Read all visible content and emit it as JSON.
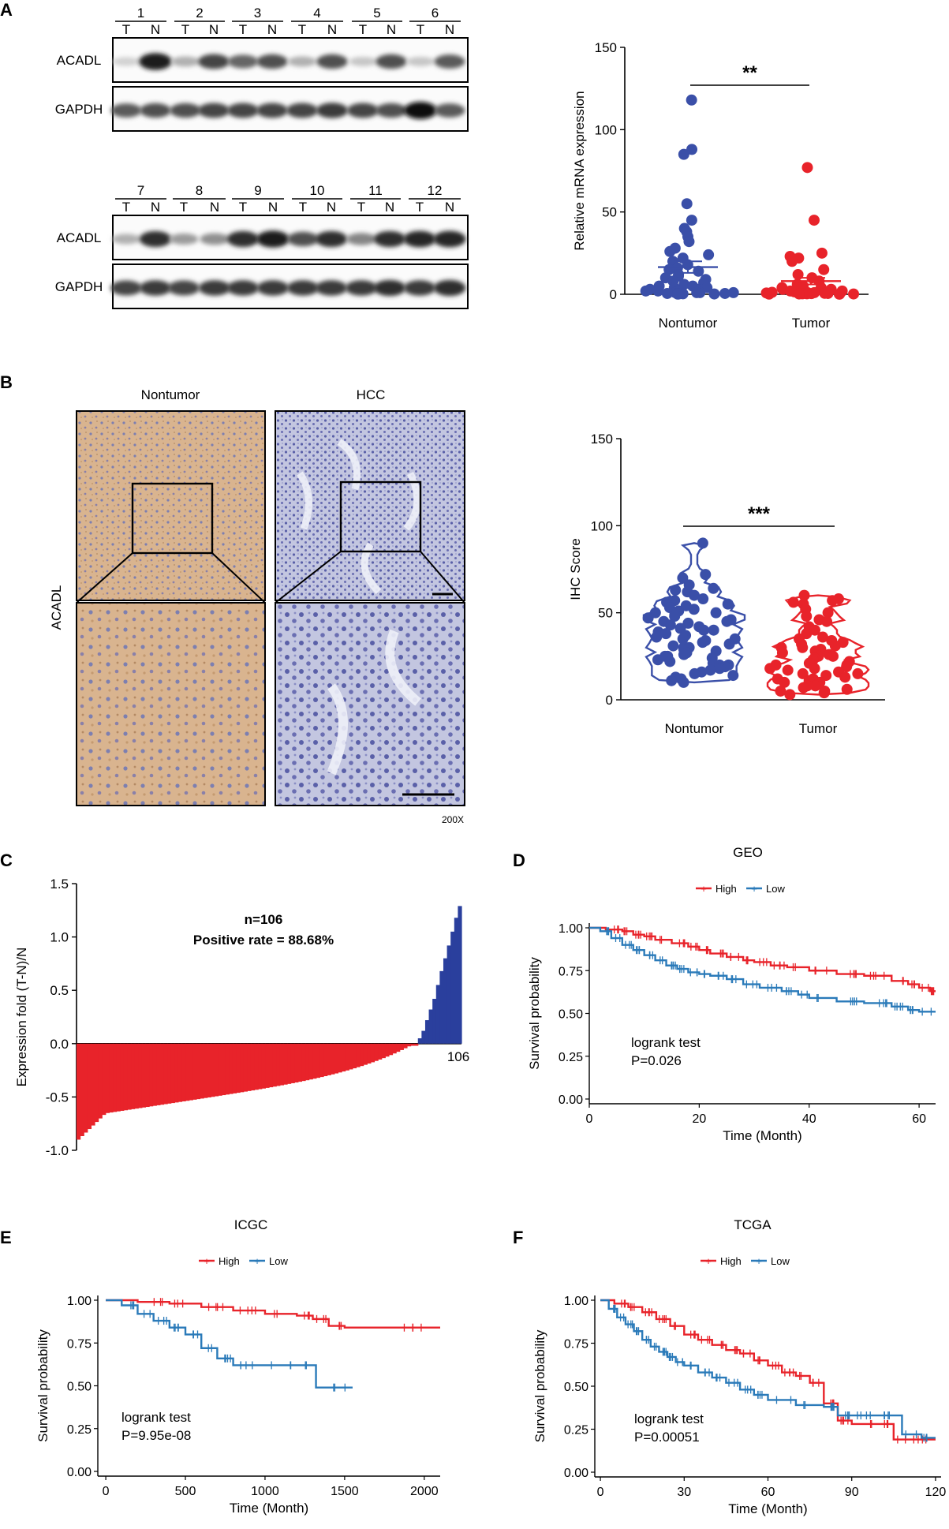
{
  "panels": {
    "A": {
      "letter": "A",
      "blot_top": {
        "lanes": [
          "1",
          "2",
          "3",
          "4",
          "5",
          "6"
        ],
        "rows": [
          "ACADL",
          "GAPDH"
        ],
        "acadl_intensity": [
          0.1,
          0.95,
          0.25,
          0.75,
          0.6,
          0.7,
          0.25,
          0.7,
          0.15,
          0.7,
          0.15,
          0.65
        ],
        "gapdh_intensity": [
          0.65,
          0.7,
          0.7,
          0.75,
          0.75,
          0.75,
          0.75,
          0.8,
          0.75,
          0.7,
          1.0,
          0.65
        ]
      },
      "blot_bottom": {
        "lanes": [
          "7",
          "8",
          "9",
          "10",
          "11",
          "12"
        ],
        "rows": [
          "ACADL",
          "GAPDH"
        ],
        "acadl_intensity": [
          0.25,
          0.85,
          0.35,
          0.4,
          0.85,
          0.95,
          0.7,
          0.85,
          0.45,
          0.85,
          0.9,
          0.9
        ],
        "gapdh_intensity": [
          0.75,
          0.8,
          0.75,
          0.8,
          0.8,
          0.8,
          0.8,
          0.8,
          0.8,
          0.85,
          0.8,
          0.85
        ]
      },
      "lane_t": "T",
      "lane_n": "N"
    },
    "B": {
      "letter": "B",
      "col_nontumor": "Nontumor",
      "col_hcc": "HCC",
      "row_label": "ACADL",
      "magnification": "200X",
      "colors": {
        "nontumor_tissue": "#d9b48f",
        "hcc_tissue": "#c3c6e0"
      }
    },
    "C": {
      "letter": "C"
    },
    "D": {
      "letter": "D"
    },
    "E": {
      "letter": "E"
    },
    "F": {
      "letter": "F"
    }
  },
  "chart_data": [
    {
      "id": "mrna",
      "type": "scatter",
      "ylabel": "Relative mRNA expression",
      "ylim": [
        0,
        150
      ],
      "yticks": [
        0,
        50,
        100,
        150
      ],
      "categories": [
        "Nontumor",
        "Tumor"
      ],
      "significance": "**",
      "colors": [
        "#3a4fa8",
        "#e8232a"
      ],
      "series": [
        {
          "name": "Nontumor",
          "mean": 16.5,
          "sem": 3.5,
          "values": [
            118,
            88,
            85,
            55,
            45,
            40,
            38,
            35,
            32,
            28,
            26,
            24,
            22,
            20,
            18,
            16,
            15,
            14,
            12,
            11,
            10,
            9,
            8,
            7,
            6,
            5,
            5,
            4,
            4,
            3,
            3,
            2,
            2,
            2,
            1,
            1,
            1,
            1,
            0.5,
            0.5,
            0.5,
            0.3,
            0.3,
            0.2,
            0.2,
            0.1
          ]
        },
        {
          "name": "Tumor",
          "mean": 8,
          "sem": 2,
          "values": [
            77,
            45,
            25,
            23,
            22,
            20,
            15,
            12,
            10,
            8,
            6,
            5,
            4,
            4,
            3,
            3,
            2,
            2,
            2,
            1.5,
            1.2,
            1,
            1,
            0.8,
            0.6,
            0.5,
            0.4,
            0.3,
            0.3,
            0.2,
            0.2,
            0.1,
            0.1,
            0.1
          ]
        }
      ]
    },
    {
      "id": "ihc",
      "type": "scatter",
      "ylabel": "IHC Score",
      "ylim": [
        0,
        150
      ],
      "yticks": [
        0,
        50,
        100,
        150
      ],
      "categories": [
        "Nontumor",
        "Tumor"
      ],
      "significance": "***",
      "colors": [
        "#3a4fa8",
        "#e8232a"
      ],
      "series": [
        {
          "name": "Nontumor",
          "values": [
            90,
            72,
            70,
            66,
            64,
            63,
            62,
            60,
            58,
            57,
            56,
            55,
            54,
            53,
            52,
            51,
            50,
            50,
            49,
            48,
            47,
            46,
            45,
            45,
            44,
            43,
            42,
            41,
            40,
            40,
            39,
            38,
            37,
            36,
            35,
            35,
            34,
            33,
            32,
            31,
            30,
            30,
            29,
            28,
            27,
            26,
            25,
            25,
            24,
            23,
            22,
            21,
            20,
            20,
            19,
            18,
            17,
            16,
            15,
            14,
            13,
            12,
            11,
            10
          ]
        },
        {
          "name": "Tumor",
          "values": [
            60,
            58,
            57,
            56,
            55,
            52,
            50,
            48,
            46,
            45,
            42,
            40,
            38,
            36,
            35,
            34,
            33,
            32,
            31,
            30,
            30,
            29,
            28,
            27,
            26,
            25,
            25,
            24,
            23,
            22,
            21,
            20,
            20,
            19,
            18,
            18,
            17,
            16,
            15,
            15,
            14,
            13,
            12,
            12,
            11,
            10,
            10,
            9,
            8,
            8,
            7,
            6,
            5,
            5,
            4,
            3
          ]
        }
      ]
    },
    {
      "id": "fold",
      "type": "bar",
      "ylabel": "Expression fold  (T-N)/N",
      "ylim": [
        -1.0,
        1.5
      ],
      "yticks": [
        -1.0,
        -0.5,
        0.0,
        0.5,
        1.0,
        1.5
      ],
      "ytick_labels": [
        "-1.0",
        "-0.5",
        "0.0",
        "0.5",
        "1.0",
        "1.5"
      ],
      "n_label": "n=106",
      "rate_label": "Positive rate = 88.68%",
      "end_label": "106",
      "count": 106,
      "neg_count": 94,
      "neg_range": [
        -0.9,
        -0.02
      ],
      "pos_values": [
        0.05,
        0.12,
        0.22,
        0.32,
        0.42,
        0.55,
        0.68,
        0.8,
        0.92,
        1.05,
        1.18,
        1.29
      ],
      "colors": {
        "neg": "#e8232a",
        "pos": "#2a3f9d"
      }
    },
    {
      "id": "geo",
      "type": "line",
      "title": "GEO",
      "xlabel": "Time (Month)",
      "ylabel": "Survival probability",
      "xlim": [
        0,
        63
      ],
      "xticks": [
        0,
        20,
        40,
        60
      ],
      "ylim": [
        0,
        1
      ],
      "yticks": [
        0,
        0.25,
        0.5,
        0.75,
        1.0
      ],
      "ytick_labels": [
        "0.00",
        "0.25",
        "0.50",
        "0.75",
        "1.00"
      ],
      "legend": [
        "High",
        "Low"
      ],
      "test_label": "logrank test",
      "pvalue": "P=0.026",
      "series": [
        {
          "name": "High",
          "color": "#e8232a",
          "x": [
            0,
            3,
            6,
            8,
            10,
            12,
            15,
            18,
            20,
            22,
            25,
            28,
            30,
            33,
            36,
            40,
            45,
            50,
            55,
            58,
            60,
            62,
            63
          ],
          "y": [
            1,
            0.99,
            0.98,
            0.96,
            0.95,
            0.93,
            0.91,
            0.89,
            0.87,
            0.85,
            0.83,
            0.81,
            0.8,
            0.78,
            0.77,
            0.75,
            0.73,
            0.72,
            0.69,
            0.67,
            0.65,
            0.63,
            0.63
          ]
        },
        {
          "name": "Low",
          "color": "#2a7ab9",
          "x": [
            0,
            2,
            4,
            6,
            8,
            10,
            12,
            14,
            16,
            18,
            20,
            22,
            25,
            28,
            31,
            35,
            38,
            40,
            45,
            50,
            55,
            58,
            60,
            63
          ],
          "y": [
            1,
            0.98,
            0.94,
            0.9,
            0.87,
            0.84,
            0.81,
            0.78,
            0.76,
            0.74,
            0.73,
            0.72,
            0.7,
            0.67,
            0.65,
            0.63,
            0.61,
            0.59,
            0.57,
            0.56,
            0.54,
            0.52,
            0.51,
            0.51
          ]
        }
      ]
    },
    {
      "id": "icgc",
      "type": "line",
      "title": "ICGC",
      "xlabel": "Time (Month)",
      "ylabel": "Survival probability",
      "xlim": [
        -50,
        2100
      ],
      "xticks": [
        0,
        500,
        1000,
        1500,
        2000
      ],
      "ylim": [
        0,
        1
      ],
      "yticks": [
        0,
        0.25,
        0.5,
        0.75,
        1.0
      ],
      "ytick_labels": [
        "0.00",
        "0.25",
        "0.50",
        "0.75",
        "1.00"
      ],
      "legend": [
        "High",
        "Low"
      ],
      "test_label": "logrank test",
      "pvalue": "P=9.95e-08",
      "series": [
        {
          "name": "High",
          "color": "#e8232a",
          "x": [
            0,
            200,
            400,
            600,
            800,
            1000,
            1200,
            1300,
            1400,
            1500,
            2100
          ],
          "y": [
            1,
            0.99,
            0.98,
            0.96,
            0.94,
            0.92,
            0.91,
            0.89,
            0.85,
            0.84,
            0.84
          ]
        },
        {
          "name": "Low",
          "color": "#2a7ab9",
          "x": [
            0,
            100,
            200,
            300,
            400,
            500,
            600,
            700,
            800,
            1000,
            1200,
            1320,
            1550
          ],
          "y": [
            1,
            0.97,
            0.92,
            0.88,
            0.84,
            0.8,
            0.72,
            0.66,
            0.62,
            0.62,
            0.62,
            0.49,
            0.49
          ]
        }
      ]
    },
    {
      "id": "tcga",
      "type": "line",
      "title": "TCGA",
      "xlabel": "Time (Month)",
      "ylabel": "Survival probability",
      "xlim": [
        -2,
        122
      ],
      "xticks": [
        0,
        30,
        60,
        90,
        120
      ],
      "ylim": [
        0,
        1
      ],
      "yticks": [
        0,
        0.25,
        0.5,
        0.75,
        1.0
      ],
      "ytick_labels": [
        "0.00",
        "0.25",
        "0.50",
        "0.75",
        "1.00"
      ],
      "legend": [
        "High",
        "Low"
      ],
      "test_label": "logrank test",
      "pvalue": "P=0.00051",
      "series": [
        {
          "name": "High",
          "color": "#e8232a",
          "x": [
            0,
            5,
            10,
            15,
            20,
            25,
            30,
            35,
            40,
            45,
            50,
            55,
            60,
            65,
            70,
            75,
            80,
            85,
            90,
            100,
            105,
            110,
            120
          ],
          "y": [
            1,
            0.98,
            0.96,
            0.93,
            0.89,
            0.85,
            0.8,
            0.77,
            0.74,
            0.71,
            0.69,
            0.65,
            0.62,
            0.58,
            0.56,
            0.52,
            0.4,
            0.3,
            0.28,
            0.28,
            0.19,
            0.19,
            0.19
          ]
        },
        {
          "name": "Low",
          "color": "#2a7ab9",
          "x": [
            0,
            3,
            6,
            9,
            12,
            15,
            18,
            21,
            24,
            27,
            30,
            35,
            40,
            45,
            50,
            55,
            60,
            70,
            80,
            85,
            90,
            100,
            108,
            115,
            120
          ],
          "y": [
            1,
            0.95,
            0.9,
            0.86,
            0.82,
            0.77,
            0.73,
            0.7,
            0.67,
            0.64,
            0.62,
            0.58,
            0.55,
            0.52,
            0.48,
            0.45,
            0.42,
            0.39,
            0.38,
            0.33,
            0.33,
            0.33,
            0.22,
            0.2,
            0.2
          ]
        }
      ]
    }
  ]
}
